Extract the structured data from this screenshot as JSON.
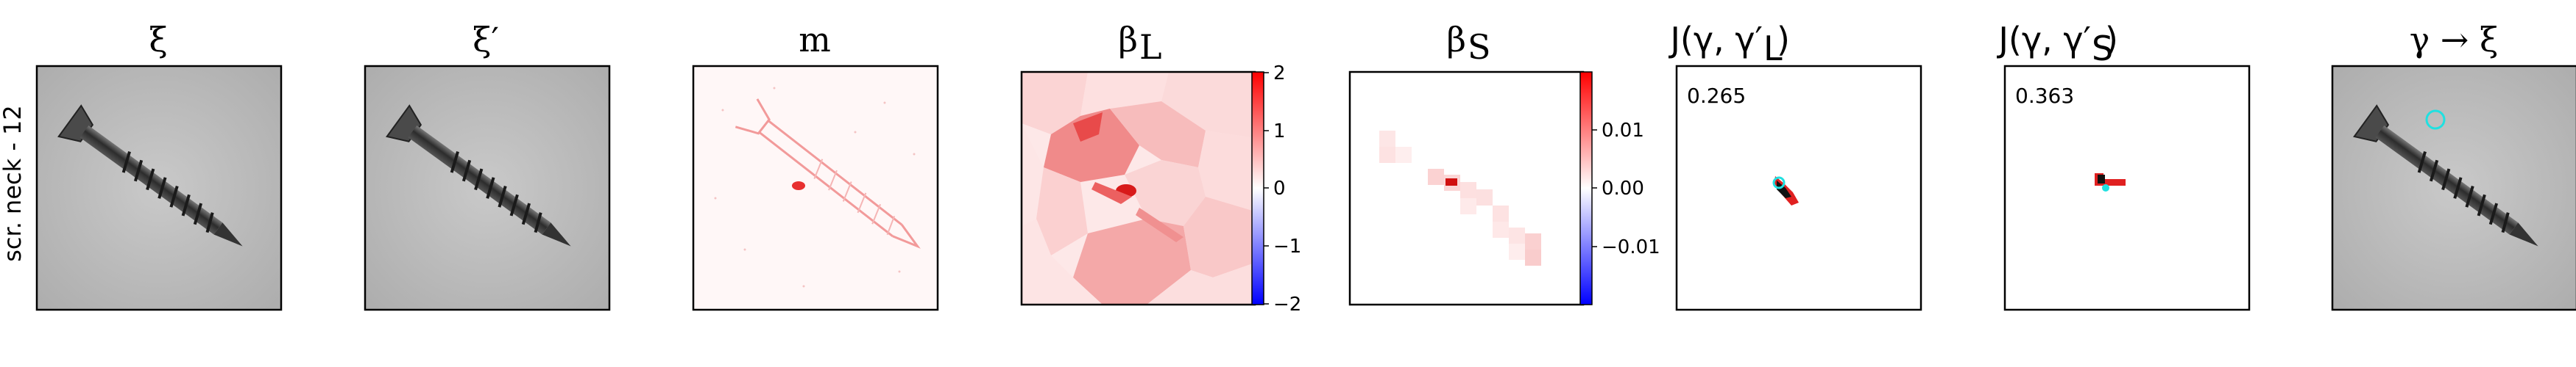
{
  "row_label": "scr. neck - 12",
  "panels": [
    {
      "id": "xi",
      "title": "ξ"
    },
    {
      "id": "xi-prime",
      "title": "ξ′"
    },
    {
      "id": "m",
      "title": "m"
    },
    {
      "id": "beta-l",
      "title": "β",
      "title_sub": "L",
      "colorbar": {
        "ticks": [
          "2",
          "1",
          "0",
          "−1",
          "−2"
        ],
        "range": [
          -2,
          2
        ]
      }
    },
    {
      "id": "beta-s",
      "title": "β",
      "title_sub": "S",
      "colorbar": {
        "ticks": [
          "0.01",
          "0.00",
          "−0.01"
        ],
        "range": [
          -0.02,
          0.02
        ]
      }
    },
    {
      "id": "j-l",
      "title": "J(γ, γ′",
      "title_sub": "L",
      "title_close": ")",
      "annotation": "0.265"
    },
    {
      "id": "j-s",
      "title": "J(γ, γ′",
      "title_sub": "S",
      "title_close": ")",
      "annotation": "0.363"
    },
    {
      "id": "gamma-xi",
      "title": "γ → ξ"
    }
  ],
  "colors": {
    "frame": "#000000",
    "screw_bg": "#bdbdbd",
    "screw_dark": "#3a3a3a",
    "red": "#e02020",
    "light_red": "#f6c0c0",
    "cyan": "#20e0e0"
  }
}
